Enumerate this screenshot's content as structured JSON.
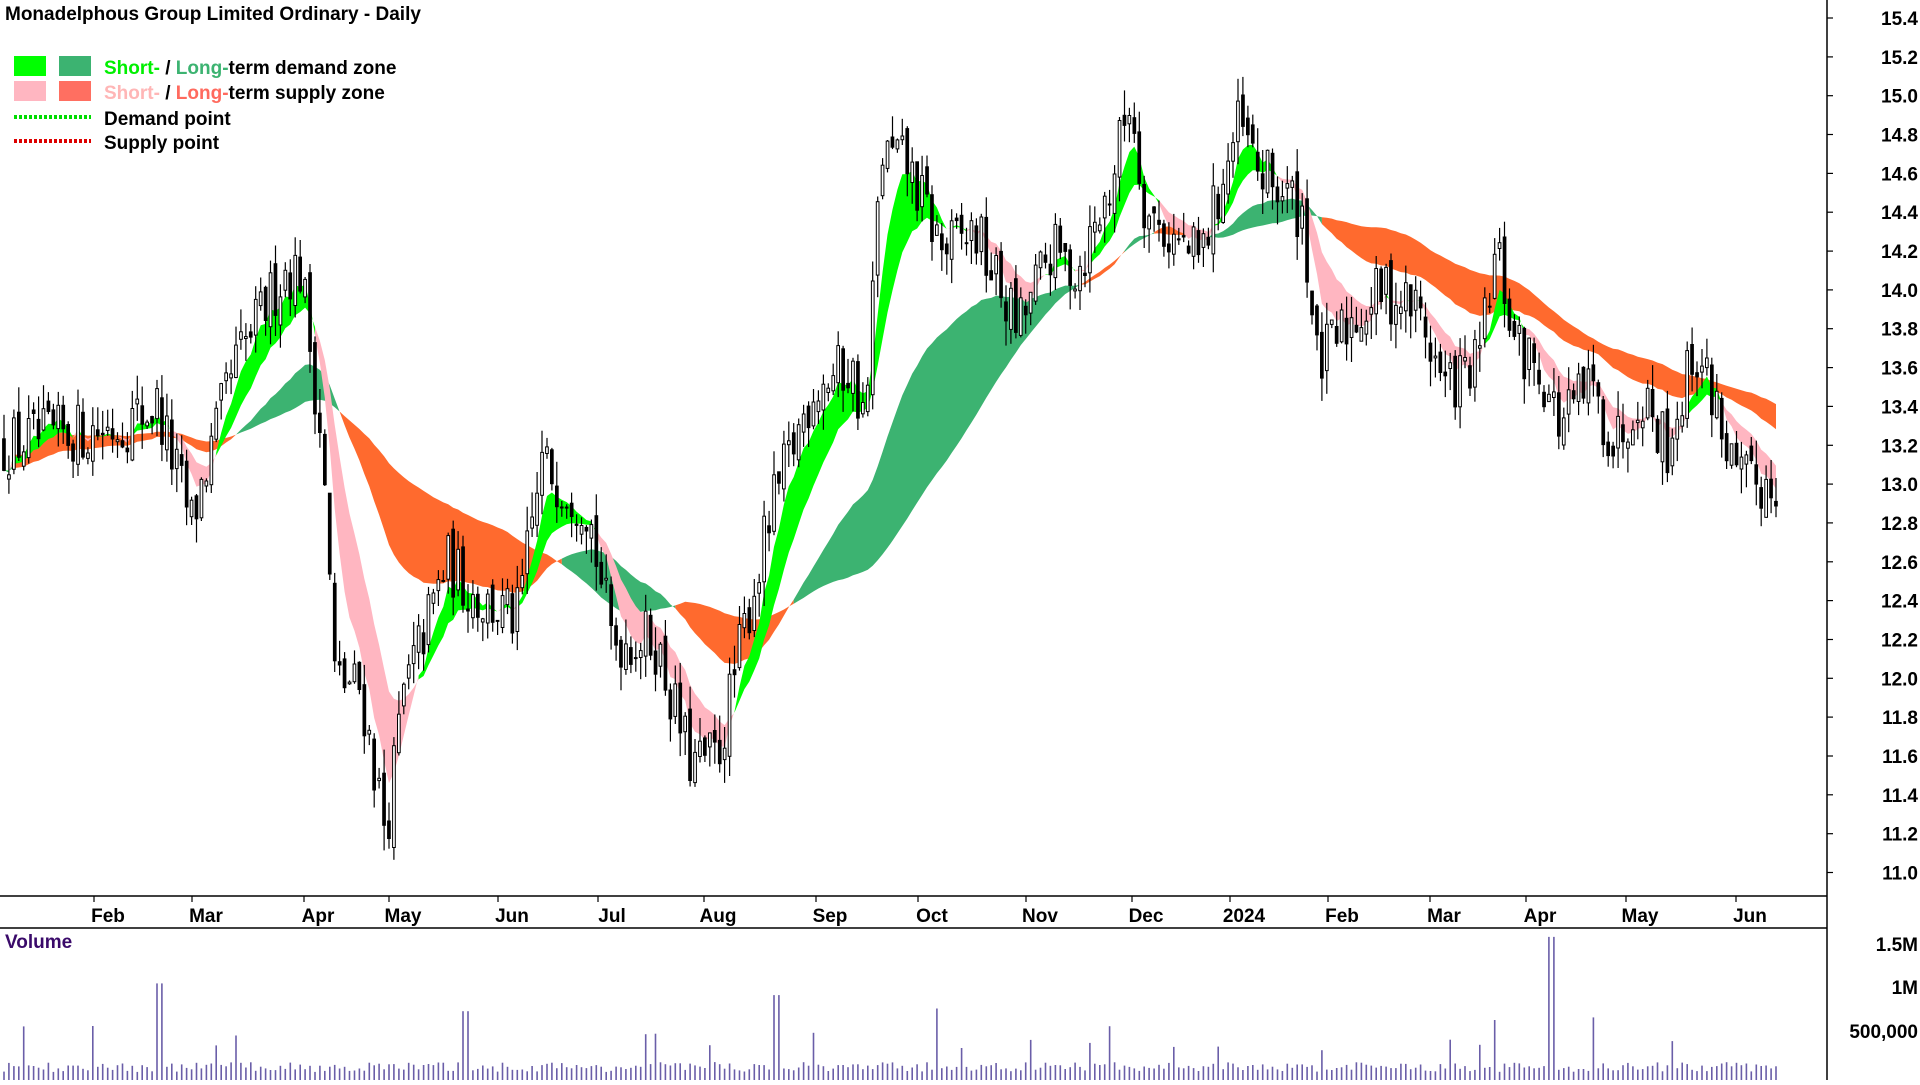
{
  "chart_data": {
    "type": "candlestick",
    "title": "Monadelphous Group Limited Ordinary - Daily",
    "legend": {
      "placement": "top-left",
      "items": [
        {
          "parts": [
            {
              "text": "Short-",
              "color": "#00f000"
            },
            {
              "text": " / ",
              "color": "#000000"
            },
            {
              "text": "Long-",
              "color": "#3cb371"
            },
            {
              "text": "term demand zone",
              "color": "#000000"
            }
          ],
          "swatches": [
            "#00ff00",
            "#3cb371"
          ]
        },
        {
          "parts": [
            {
              "text": "Short-",
              "color": "#ffb6b6"
            },
            {
              "text": " / ",
              "color": "#000000"
            },
            {
              "text": "Long-",
              "color": "#ff6a5e"
            },
            {
              "text": "term supply zone",
              "color": "#000000"
            }
          ],
          "swatches": [
            "#ffb6c1",
            "#ff6f61"
          ]
        },
        {
          "parts": [
            {
              "text": "Demand point",
              "color": "#000000"
            }
          ],
          "line": "#00dd00"
        },
        {
          "parts": [
            {
              "text": "Supply point",
              "color": "#000000"
            }
          ],
          "line": "#dd0000"
        }
      ]
    },
    "price_axis": {
      "range": [
        10.9,
        15.5
      ],
      "ticks": [
        "15.4",
        "15.2",
        "15.0",
        "14.8",
        "14.6",
        "14.4",
        "14.2",
        "14.0",
        "13.8",
        "13.6",
        "13.4",
        "13.2",
        "13.0",
        "12.8",
        "12.6",
        "12.4",
        "12.2",
        "12.0",
        "11.8",
        "11.6",
        "11.4",
        "11.2",
        "11.0"
      ]
    },
    "months": [
      "Feb",
      "Mar",
      "Apr",
      "May",
      "Jun",
      "Jul",
      "Aug",
      "Sep",
      "Oct",
      "Nov",
      "Dec",
      "2024",
      "Feb",
      "Mar",
      "Apr",
      "May",
      "Jun"
    ],
    "close_keypoints": [
      {
        "t": 0,
        "v": 13.2
      },
      {
        "t": 0.12,
        "v": 13.3
      },
      {
        "t": 0.5,
        "v": 13.4
      },
      {
        "t": 0.85,
        "v": 12.8
      },
      {
        "t": 1.25,
        "v": 13.6
      },
      {
        "t": 1.7,
        "v": 14.1
      },
      {
        "t": 1.85,
        "v": 14.1
      },
      {
        "t": 2.05,
        "v": 13.2
      },
      {
        "t": 2.2,
        "v": 12.0
      },
      {
        "t": 2.5,
        "v": 11.95
      },
      {
        "t": 2.8,
        "v": 11.2
      },
      {
        "t": 3.0,
        "v": 11.9
      },
      {
        "t": 3.4,
        "v": 12.6
      },
      {
        "t": 3.7,
        "v": 12.4
      },
      {
        "t": 4.05,
        "v": 12.3
      },
      {
        "t": 4.3,
        "v": 13.1
      },
      {
        "t": 4.75,
        "v": 12.9
      },
      {
        "t": 5.0,
        "v": 12.2
      },
      {
        "t": 5.4,
        "v": 12.2
      },
      {
        "t": 5.75,
        "v": 11.55
      },
      {
        "t": 6.0,
        "v": 11.6
      },
      {
        "t": 6.25,
        "v": 12.3
      },
      {
        "t": 6.5,
        "v": 12.9
      },
      {
        "t": 6.85,
        "v": 13.5
      },
      {
        "t": 7.2,
        "v": 13.6
      },
      {
        "t": 7.35,
        "v": 13.3
      },
      {
        "t": 7.5,
        "v": 14.7
      },
      {
        "t": 7.75,
        "v": 14.65
      },
      {
        "t": 8.1,
        "v": 14.2
      },
      {
        "t": 8.4,
        "v": 14.3
      },
      {
        "t": 8.55,
        "v": 14.1
      },
      {
        "t": 8.8,
        "v": 13.8
      },
      {
        "t": 9.1,
        "v": 14.2
      },
      {
        "t": 9.35,
        "v": 14.1
      },
      {
        "t": 9.65,
        "v": 14.5
      },
      {
        "t": 9.85,
        "v": 15.0
      },
      {
        "t": 10.0,
        "v": 14.4
      },
      {
        "t": 10.3,
        "v": 14.25
      },
      {
        "t": 10.55,
        "v": 14.15
      },
      {
        "t": 10.8,
        "v": 14.6
      },
      {
        "t": 10.95,
        "v": 14.85
      },
      {
        "t": 11.15,
        "v": 14.6
      },
      {
        "t": 11.4,
        "v": 14.5
      },
      {
        "t": 11.6,
        "v": 14.4
      },
      {
        "t": 11.75,
        "v": 13.6
      },
      {
        "t": 12.1,
        "v": 13.85
      },
      {
        "t": 12.4,
        "v": 14.0
      },
      {
        "t": 12.75,
        "v": 13.9
      },
      {
        "t": 13.0,
        "v": 13.5
      },
      {
        "t": 13.35,
        "v": 13.6
      },
      {
        "t": 13.55,
        "v": 14.2
      },
      {
        "t": 13.75,
        "v": 13.7
      },
      {
        "t": 14.0,
        "v": 13.6
      },
      {
        "t": 14.2,
        "v": 13.3
      },
      {
        "t": 14.5,
        "v": 13.5
      },
      {
        "t": 14.75,
        "v": 13.2
      },
      {
        "t": 15.0,
        "v": 13.5
      },
      {
        "t": 15.25,
        "v": 13.2
      },
      {
        "t": 15.5,
        "v": 13.7
      },
      {
        "t": 15.7,
        "v": 13.4
      },
      {
        "t": 15.88,
        "v": 13.0
      }
    ],
    "volume": {
      "title": "Volume",
      "ticks": [
        "1.5M",
        "1M",
        "500,000"
      ],
      "range": [
        0,
        1700000
      ]
    }
  }
}
